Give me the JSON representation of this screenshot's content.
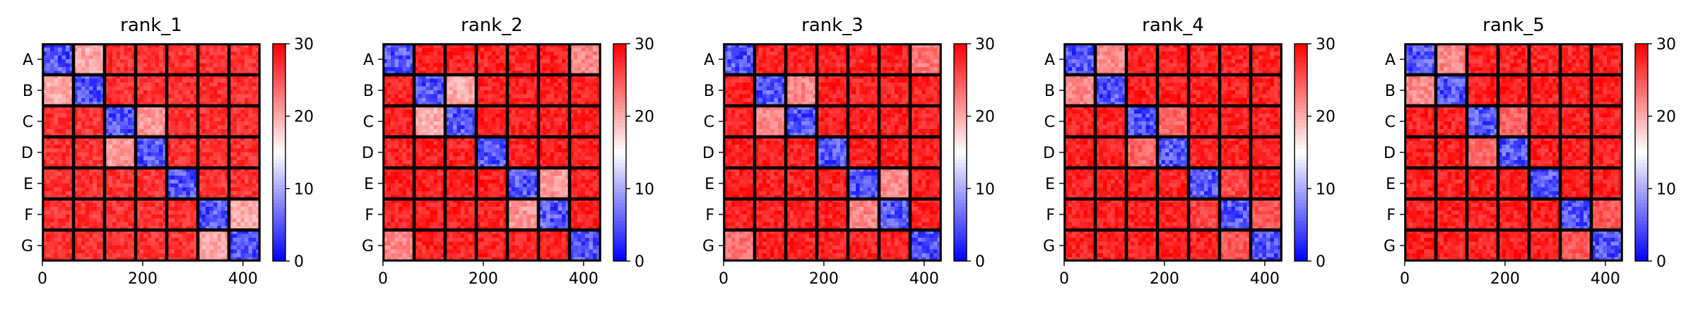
{
  "colors": {
    "low": "#0000ff",
    "mid": "#ffffff",
    "high": "#ff0000",
    "block_border": "#000000"
  },
  "chart_data": [
    {
      "type": "heatmap",
      "title": "rank_1",
      "block_labels": [
        "A",
        "B",
        "C",
        "D",
        "E",
        "F",
        "G"
      ],
      "xlim": [
        0,
        434
      ],
      "x_ticks": [
        0,
        200,
        400
      ],
      "colorbar": {
        "vmin": 0,
        "vmax": 30,
        "ticks": [
          0,
          10,
          20,
          30
        ],
        "colormap": "bwr"
      },
      "block_values": [
        [
          5,
          20,
          27,
          27,
          27,
          27,
          27
        ],
        [
          20,
          5,
          27,
          27,
          27,
          27,
          27
        ],
        [
          27,
          27,
          5,
          21,
          27,
          27,
          27
        ],
        [
          27,
          27,
          21,
          5,
          27,
          27,
          27
        ],
        [
          27,
          27,
          27,
          27,
          5,
          27,
          27
        ],
        [
          27,
          27,
          27,
          27,
          27,
          5,
          20
        ],
        [
          27,
          27,
          27,
          27,
          27,
          20,
          5
        ]
      ]
    },
    {
      "type": "heatmap",
      "title": "rank_2",
      "block_labels": [
        "A",
        "B",
        "C",
        "D",
        "E",
        "F",
        "G"
      ],
      "xlim": [
        0,
        434
      ],
      "x_ticks": [
        0,
        200,
        400
      ],
      "colorbar": {
        "vmin": 0,
        "vmax": 30,
        "ticks": [
          0,
          10,
          20,
          30
        ],
        "colormap": "bwr"
      },
      "block_values": [
        [
          5,
          28,
          28,
          28,
          28,
          28,
          22
        ],
        [
          28,
          5,
          20,
          28,
          28,
          28,
          28
        ],
        [
          28,
          20,
          5,
          28,
          28,
          28,
          28
        ],
        [
          28,
          28,
          28,
          5,
          28,
          28,
          28
        ],
        [
          28,
          28,
          28,
          28,
          5,
          21,
          28
        ],
        [
          28,
          28,
          28,
          28,
          21,
          5,
          28
        ],
        [
          22,
          28,
          28,
          28,
          28,
          28,
          5
        ]
      ]
    },
    {
      "type": "heatmap",
      "title": "rank_3",
      "block_labels": [
        "A",
        "B",
        "C",
        "D",
        "E",
        "F",
        "G"
      ],
      "xlim": [
        0,
        434
      ],
      "x_ticks": [
        0,
        200,
        400
      ],
      "colorbar": {
        "vmin": 0,
        "vmax": 30,
        "ticks": [
          0,
          10,
          20,
          30
        ],
        "colormap": "bwr"
      },
      "block_values": [
        [
          5,
          28,
          28,
          28,
          28,
          28,
          23
        ],
        [
          28,
          5,
          22,
          28,
          28,
          28,
          28
        ],
        [
          28,
          22,
          5,
          28,
          28,
          28,
          28
        ],
        [
          28,
          28,
          28,
          5,
          28,
          28,
          28
        ],
        [
          28,
          28,
          28,
          28,
          5,
          22,
          28
        ],
        [
          28,
          28,
          28,
          28,
          22,
          5,
          28
        ],
        [
          23,
          28,
          28,
          28,
          28,
          28,
          5
        ]
      ]
    },
    {
      "type": "heatmap",
      "title": "rank_4",
      "block_labels": [
        "A",
        "B",
        "C",
        "D",
        "E",
        "F",
        "G"
      ],
      "xlim": [
        0,
        434
      ],
      "x_ticks": [
        0,
        200,
        400
      ],
      "colorbar": {
        "vmin": 0,
        "vmax": 30,
        "ticks": [
          0,
          10,
          20,
          30
        ],
        "colormap": "bwr"
      },
      "block_values": [
        [
          5,
          22,
          28,
          28,
          28,
          28,
          28
        ],
        [
          22,
          5,
          28,
          28,
          28,
          28,
          28
        ],
        [
          28,
          28,
          5,
          24,
          28,
          28,
          28
        ],
        [
          28,
          28,
          24,
          5,
          28,
          28,
          28
        ],
        [
          28,
          28,
          28,
          28,
          5,
          26,
          28
        ],
        [
          28,
          28,
          28,
          28,
          26,
          5,
          25
        ],
        [
          28,
          28,
          28,
          28,
          28,
          25,
          5
        ]
      ]
    },
    {
      "type": "heatmap",
      "title": "rank_5",
      "block_labels": [
        "A",
        "B",
        "C",
        "D",
        "E",
        "F",
        "G"
      ],
      "xlim": [
        0,
        434
      ],
      "x_ticks": [
        0,
        200,
        400
      ],
      "colorbar": {
        "vmin": 0,
        "vmax": 30,
        "ticks": [
          0,
          10,
          20,
          30
        ],
        "colormap": "bwr"
      },
      "block_values": [
        [
          5,
          22,
          28,
          28,
          28,
          28,
          28
        ],
        [
          22,
          5,
          28,
          28,
          28,
          28,
          28
        ],
        [
          28,
          28,
          5,
          24,
          28,
          28,
          28
        ],
        [
          28,
          28,
          24,
          5,
          28,
          28,
          28
        ],
        [
          28,
          28,
          28,
          28,
          5,
          28,
          28
        ],
        [
          28,
          28,
          28,
          28,
          28,
          5,
          25
        ],
        [
          28,
          28,
          28,
          28,
          28,
          25,
          5
        ]
      ]
    }
  ]
}
